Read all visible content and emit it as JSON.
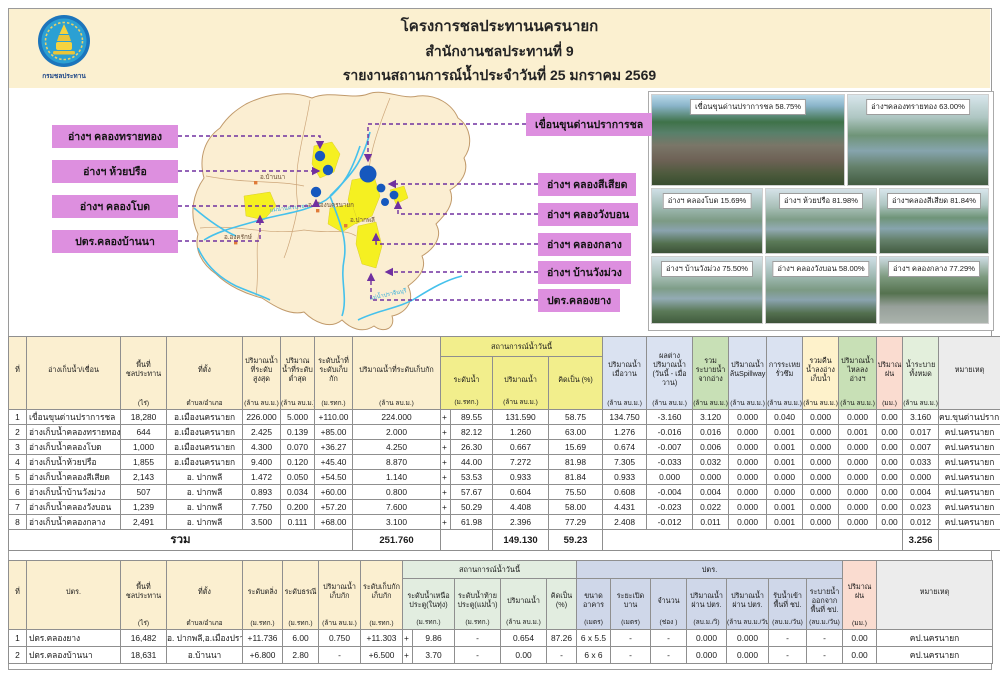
{
  "header": {
    "title1": "โครงการชลประทานนครนายก",
    "title2": "สำนักงานชลประทานที่ 9",
    "title3": "รายงานสถานการณ์น้ำประจำวันที่ 25  มกราคม  2569",
    "logo_text": "กรมชลประทาน"
  },
  "map": {
    "left_labels": [
      "อ่างฯ คลองทรายทอง",
      "อ่างฯ ห้วยปรือ",
      "อ่างฯ คลองโบด",
      "ปตร.คลองบ้านนา"
    ],
    "right_labels": [
      "เขื่อนขุนด่านปราการชล",
      "อ่างฯ คลองสีเสียด",
      "อ่างฯ คลองวังบอน",
      "อ่างฯ คลองกลาง",
      "อ่างฯ บ้านวังม่วง",
      "ปตร.คลองยาง"
    ],
    "districts": [
      "อ.บ้านนา",
      "อ.เมืองนครนายก",
      "อ.ปากพลี",
      "อ.องครักษ์"
    ],
    "rivers": [
      "แม่น้ำนครนายก",
      "แม่น้ำปราจีนบุรี"
    ],
    "label_bg": "#DD8FDF",
    "leader_line_color": "#7030A0",
    "land_color": "#FBEED2",
    "water_color": "#45C1EC",
    "reservoir_dot_color": "#1658BE",
    "highlight_color": "#F5F021"
  },
  "photos": [
    {
      "caption": "เขื่อนขุนด่านปราการชล  58.75%"
    },
    {
      "caption": "อ่างฯคลองทรายทอง 63.00%"
    },
    {
      "caption": "อ่างฯ คลองโบด 15.69%"
    },
    {
      "caption": "อ่างฯ ห้วยปรือ 81.98%"
    },
    {
      "caption": "อ่างฯคลองสีเสียด 81.84%"
    },
    {
      "caption": "อ่างฯ บ้านวังม่วง 75.50%"
    },
    {
      "caption": "อ่างฯ คลองวังบอน 58.00%"
    },
    {
      "caption": "อ่างฯ คลองกลาง  77.29%"
    }
  ],
  "table1": {
    "group_titles": [
      "สถานการณ์น้ำวันนี้"
    ],
    "columns": [
      {
        "label": "ที่",
        "unit": ""
      },
      {
        "label": "อ่างเก็บน้ำ/เขื่อน",
        "unit": ""
      },
      {
        "label": "พื้นที่ชลประทาน",
        "unit": "(ไร่)"
      },
      {
        "label": "ที่ตั้ง",
        "unit": "ตำบล/อำเภอ"
      },
      {
        "label": "ปริมาณน้ำที่ระดับสูงสุด",
        "unit": "(ล้าน ลบ.ม.)"
      },
      {
        "label": "ปริมาณน้ำที่ระดับต่ำสุด",
        "unit": "(ล้าน ลบ.ม.)"
      },
      {
        "label": "ระดับน้ำที่ระดับเก็บกัก",
        "unit": "(ม.รทก.)"
      },
      {
        "label": "ปริมาณน้ำที่ระดับเก็บกัก",
        "unit": "(ล้าน ลบ.ม.)"
      },
      {
        "label": "ระดับน้ำ",
        "unit": "(ม.รทก.)"
      },
      {
        "label": "ปริมาณน้ำ",
        "unit": "(ล้าน ลบ.ม.)"
      },
      {
        "label": "คิดเป็น (%)",
        "unit": ""
      },
      {
        "label": "ปริมาณน้ำเมื่อวาน",
        "unit": "(ล้าน ลบ.ม.)"
      },
      {
        "label": "ผลต่างปริมาณน้ำ (วันนี้ - เมื่อวาน)",
        "unit": "(ล้าน ลบ.ม.)"
      },
      {
        "label": "รวมระบายน้ำจากอ่าง",
        "unit": "(ล้าน ลบ.ม.)"
      },
      {
        "label": "ปริมาณน้ำล้นSpillway",
        "unit": "(ล้าน ลบ.ม.)"
      },
      {
        "label": "การระเหยรั่วซึม",
        "unit": "(ล้าน ลบ.ม.)"
      },
      {
        "label": "รวมคืนน้ำลงอ่างเก็บน้ำ",
        "unit": "(ล้าน ลบ.ม.)"
      },
      {
        "label": "ปริมาณน้ำไหลลงอ่างฯ",
        "unit": "(ล้าน ลบ.ม.)"
      },
      {
        "label": "ปริมาณฝน",
        "unit": "(มม.)"
      },
      {
        "label": "น้ำระบายทั้งหมด",
        "unit": "(ล้าน ลบ.ม.)"
      },
      {
        "label": "หมายเหตุ",
        "unit": ""
      }
    ],
    "rows": [
      [
        "1",
        "เขื่อนขุนด่านปราการชล",
        "18,280",
        "อ.เมืองนครนายก",
        "226.000",
        "5.000",
        "+110.00",
        "224.000",
        "+",
        "89.55",
        "131.590",
        "58.75",
        "134.750",
        "-3.160",
        "3.120",
        "0.000",
        "0.040",
        "0.000",
        "0.000",
        "0.00",
        "3.160",
        "คบ.ขุนด่านปราการชล"
      ],
      [
        "2",
        "อ่างเก็บน้ำคลองทรายทอง",
        "644",
        "อ.เมืองนครนายก",
        "2.425",
        "0.139",
        "+85.00",
        "2.000",
        "+",
        "82.12",
        "1.260",
        "63.00",
        "1.276",
        "-0.016",
        "0.016",
        "0.000",
        "0.001",
        "0.000",
        "0.001",
        "0.00",
        "0.017",
        "คป.นครนายก"
      ],
      [
        "3",
        "อ่างเก็บน้ำคลองโบด",
        "1,000",
        "อ.เมืองนครนายก",
        "4.300",
        "0.070",
        "+36.27",
        "4.250",
        "+",
        "26.30",
        "0.667",
        "15.69",
        "0.674",
        "-0.007",
        "0.006",
        "0.000",
        "0.001",
        "0.000",
        "0.000",
        "0.00",
        "0.007",
        "คป.นครนายก"
      ],
      [
        "4",
        "อ่างเก็บน้ำห้วยปรือ",
        "1,855",
        "อ.เมืองนครนายก",
        "9.400",
        "0.120",
        "+45.40",
        "8.870",
        "+",
        "44.00",
        "7.272",
        "81.98",
        "7.305",
        "-0.033",
        "0.032",
        "0.000",
        "0.001",
        "0.000",
        "0.000",
        "0.00",
        "0.033",
        "คป.นครนายก"
      ],
      [
        "5",
        "อ่างเก็บน้ำคลองสีเสียด",
        "2,143",
        "อ. ปากพลี",
        "1.472",
        "0.050",
        "+54.50",
        "1.140",
        "+",
        "53.53",
        "0.933",
        "81.84",
        "0.933",
        "0.000",
        "0.000",
        "0.000",
        "0.000",
        "0.000",
        "0.000",
        "0.00",
        "0.000",
        "คป.นครนายก"
      ],
      [
        "6",
        "อ่างเก็บน้ำบ้านวังม่วง",
        "507",
        "อ. ปากพลี",
        "0.893",
        "0.034",
        "+60.00",
        "0.800",
        "+",
        "57.67",
        "0.604",
        "75.50",
        "0.608",
        "-0.004",
        "0.004",
        "0.000",
        "0.000",
        "0.000",
        "0.000",
        "0.00",
        "0.004",
        "คป.นครนายก"
      ],
      [
        "7",
        "อ่างเก็บน้ำคลองวังบอน",
        "1,239",
        "อ. ปากพลี",
        "7.750",
        "0.200",
        "+57.20",
        "7.600",
        "+",
        "50.29",
        "4.408",
        "58.00",
        "4.431",
        "-0.023",
        "0.022",
        "0.000",
        "0.001",
        "0.000",
        "0.000",
        "0.00",
        "0.023",
        "คป.นครนายก"
      ],
      [
        "8",
        "อ่างเก็บน้ำคลองกลาง",
        "2,491",
        "อ. ปากพลี",
        "3.500",
        "0.111",
        "+68.00",
        "3.100",
        "+",
        "61.98",
        "2.396",
        "77.29",
        "2.408",
        "-0.012",
        "0.011",
        "0.000",
        "0.001",
        "0.000",
        "0.000",
        "0.00",
        "0.012",
        "คป.นครนายก"
      ]
    ],
    "total_cells": [
      "รวม",
      "251.760",
      "",
      "149.130",
      "59.23",
      "",
      "3.256",
      ""
    ]
  },
  "table2": {
    "group_titles": [
      "สถานการณ์น้ำวันนี้",
      "ปตร."
    ],
    "columns": [
      {
        "label": "ที่",
        "unit": ""
      },
      {
        "label": "ปตร.",
        "unit": ""
      },
      {
        "label": "พื้นที่ชลประทาน",
        "unit": "(ไร่)"
      },
      {
        "label": "ที่ตั้ง",
        "unit": "ตำบล/อำเภอ"
      },
      {
        "label": "ระดับตลิ่ง",
        "unit": "(ม.รทก.)"
      },
      {
        "label": "ระดับธรณี",
        "unit": "(ม.รทก.)"
      },
      {
        "label": "ปริมาณน้ำเก็บกัก",
        "unit": "(ล้าน ลบ.ม.)"
      },
      {
        "label": "ระดับเก็บกัก เก็บกัก",
        "unit": "(ม.รทก.)"
      },
      {
        "label": "ระดับน้ำเหนือประตู(ในทุ่ง)",
        "unit": "(ม.รทก.)"
      },
      {
        "label": "ระดับน้ำท้ายประตู(แม่น้ำ)",
        "unit": "(ม.รทก.)"
      },
      {
        "label": "ปริมาณน้ำ",
        "unit": "(ล้าน ลบ.ม.)"
      },
      {
        "label": "คิดเป็น (%)",
        "unit": ""
      },
      {
        "label": "ขนาดอาคาร",
        "unit": "(เมตร)"
      },
      {
        "label": "ระยะเปิดบาน",
        "unit": "(เมตร)"
      },
      {
        "label": "จำนวน",
        "unit": "(ช่อง )"
      },
      {
        "label": "ปริมาณน้ำผ่าน ปตร.",
        "unit": "(ลบ.ม./วิ)"
      },
      {
        "label": "ปริมาณน้ำผ่าน ปตร.",
        "unit": "(ล้าน ลบ.ม./วัน)"
      },
      {
        "label": "รับน้ำเข้าพื้นที่ ชป.",
        "unit": "(ลบ.ม./วัน)"
      },
      {
        "label": "ระบายน้ำออกจากพื้นที่ ชป.",
        "unit": "(ลบ.ม./วัน)"
      },
      {
        "label": "ปริมาณฝน",
        "unit": "(มม.)"
      },
      {
        "label": "หมายเหตุ",
        "unit": ""
      }
    ],
    "rows": [
      [
        "1",
        "ปตร.คลองยาง",
        "16,482",
        "อ. ปากพลี,อ.เมืองปราจีน",
        "+11.736",
        "6.00",
        "0.750",
        "+11.303",
        "+",
        "9.86",
        "-",
        "0.654",
        "87.26",
        "6 x 5.5",
        "-",
        "-",
        "0.000",
        "0.000",
        "-",
        "-",
        "0.00",
        "คป.นครนายก"
      ],
      [
        "2",
        "ปตร.คลองบ้านนา",
        "18,631",
        "อ.บ้านนา",
        "+6.800",
        "2.80",
        "-",
        "+6.500",
        "+",
        "3.70",
        "-",
        "0.00",
        "-",
        "6 x 6",
        "-",
        "-",
        "0.000",
        "0.000",
        "-",
        "-",
        "0.00",
        "คป.นครนายก"
      ]
    ]
  }
}
